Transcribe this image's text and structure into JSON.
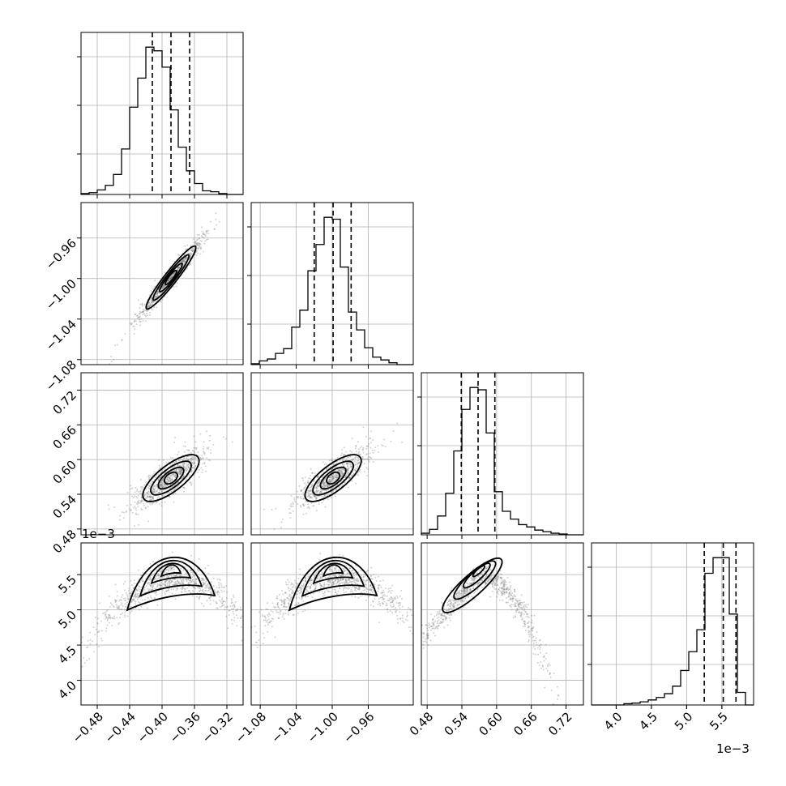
{
  "figure": {
    "offset_left": "1e−3",
    "offset_bottom": "1e−3"
  },
  "style": {
    "scatter_color": "#7f7f7f",
    "line_color": "#000000",
    "grid_color": "#b0b0b0"
  },
  "chart_data": [
    {
      "type": "histogram",
      "panel": "param-1-hist",
      "xlim": [
        -0.5,
        -0.3
      ],
      "x_ticks": [
        "−0.48",
        "−0.44",
        "−0.40",
        "−0.36",
        "−0.32"
      ],
      "bin_edges_range": [
        -0.5,
        -0.3
      ],
      "bins": 20,
      "counts": [
        1,
        2,
        5,
        10,
        22,
        50,
        96,
        128,
        162,
        158,
        140,
        93,
        52,
        26,
        12,
        4,
        3,
        1,
        0,
        0
      ],
      "quantiles": [
        -0.412,
        -0.389,
        -0.366
      ],
      "grid": true
    },
    {
      "type": "histogram",
      "panel": "param-2-hist",
      "xlim": [
        -1.09,
        -0.91
      ],
      "x_ticks": [
        "−1.08",
        "−1.04",
        "−1.00",
        "−0.96"
      ],
      "bin_edges_range": [
        -1.09,
        -0.91
      ],
      "bins": 20,
      "counts": [
        1,
        4,
        6,
        12,
        17,
        40,
        58,
        100,
        128,
        157,
        155,
        104,
        56,
        37,
        18,
        8,
        5,
        2,
        0,
        0
      ],
      "quantiles": [
        -1.02,
        -0.999,
        -0.979
      ],
      "grid": true
    },
    {
      "type": "histogram",
      "panel": "param-3-hist",
      "xlim": [
        0.47,
        0.75
      ],
      "x_ticks": [
        "0.48",
        "0.54",
        "0.60",
        "0.66",
        "0.72"
      ],
      "bin_edges_range": [
        0.47,
        0.75
      ],
      "bins": 20,
      "counts": [
        2,
        7,
        24,
        53,
        107,
        160,
        188,
        185,
        130,
        55,
        30,
        20,
        13,
        10,
        6,
        4,
        2,
        1,
        0,
        0
      ],
      "quantiles": [
        0.539,
        0.568,
        0.597
      ],
      "grid": true
    },
    {
      "type": "histogram",
      "panel": "param-4-hist",
      "xlim": [
        3.65,
        5.95
      ],
      "x_ticks": [
        "4.0",
        "4.5",
        "5.0",
        "5.5"
      ],
      "bin_edges_range": [
        3.65,
        5.95
      ],
      "bins": 20,
      "counts": [
        0,
        0,
        0,
        0,
        2,
        3,
        5,
        8,
        12,
        18,
        30,
        55,
        85,
        120,
        210,
        235,
        235,
        145,
        20,
        0
      ],
      "quantiles": [
        5.25,
        5.52,
        5.7
      ],
      "grid": true
    },
    {
      "type": "scatter",
      "panel": "param-1-vs-param-2",
      "xlim": [
        -0.5,
        -0.3
      ],
      "ylim": [
        -1.085,
        -0.925
      ],
      "y_ticks": [
        "−1.08",
        "−1.04",
        "−1.00",
        "−0.96"
      ],
      "center": [
        -0.389,
        -0.999
      ],
      "x_range_main": [
        -0.438,
        -0.344
      ],
      "y_range_main": [
        -1.036,
        -0.965
      ],
      "correlation": "positive, tight"
    },
    {
      "type": "scatter",
      "panel": "param-1-vs-param-3",
      "xlim": [
        -0.5,
        -0.3
      ],
      "ylim": [
        0.47,
        0.75
      ],
      "y_ticks": [
        "0.48",
        "0.54",
        "0.60",
        "0.66",
        "0.72"
      ],
      "center": [
        -0.389,
        0.568
      ],
      "x_range_main": [
        -0.445,
        -0.345
      ],
      "y_range_main": [
        0.52,
        0.63
      ],
      "correlation": "positive"
    },
    {
      "type": "scatter",
      "panel": "param-2-vs-param-3",
      "xlim": [
        -1.09,
        -0.91
      ],
      "ylim": [
        0.47,
        0.75
      ],
      "center": [
        -0.999,
        0.568
      ],
      "x_range_main": [
        -1.04,
        -0.955
      ],
      "y_range_main": [
        0.52,
        0.63
      ],
      "correlation": "positive"
    },
    {
      "type": "scatter",
      "panel": "param-1-vs-param-4",
      "xlim": [
        -0.5,
        -0.3
      ],
      "ylim": [
        3.65,
        5.95
      ],
      "y_ticks": [
        "4.0",
        "4.5",
        "5.0",
        "5.5"
      ],
      "center": [
        -0.389,
        5.6
      ],
      "shape": "arch"
    },
    {
      "type": "scatter",
      "panel": "param-2-vs-param-4",
      "xlim": [
        -1.09,
        -0.91
      ],
      "ylim": [
        3.65,
        5.95
      ],
      "center": [
        -0.999,
        5.6
      ],
      "shape": "arch"
    },
    {
      "type": "scatter",
      "panel": "param-3-vs-param-4",
      "xlim": [
        0.47,
        0.75
      ],
      "ylim": [
        3.65,
        5.95
      ],
      "center": [
        0.572,
        5.6
      ],
      "shape": "peaked ridge"
    }
  ]
}
